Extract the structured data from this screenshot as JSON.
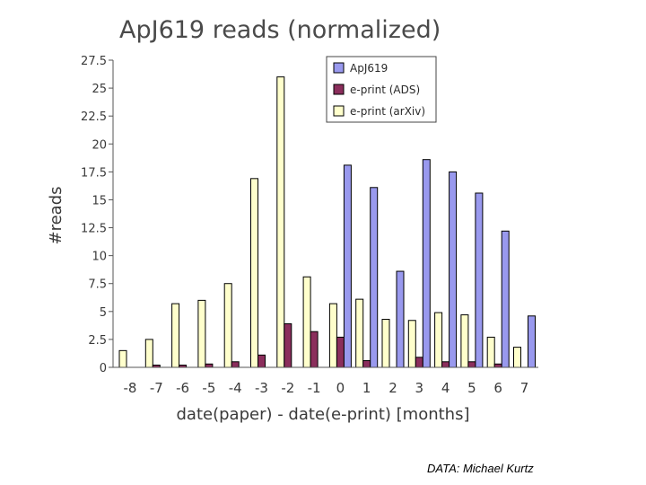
{
  "credit": "DATA: Michael Kurtz",
  "chart_data": {
    "type": "bar",
    "title": "ApJ619 reads (normalized)",
    "xlabel": "date(paper) - date(e-print) [months]",
    "ylabel": "#reads",
    "categories": [
      "-8",
      "-7",
      "-6",
      "-5",
      "-4",
      "-3",
      "-2",
      "-1",
      "0",
      "1",
      "2",
      "3",
      "4",
      "5",
      "6",
      "7"
    ],
    "ylim": [
      0,
      27.5
    ],
    "yticks": [
      "0",
      "2.5",
      "5",
      "7.5",
      "10",
      "12.5",
      "15",
      "17.5",
      "20",
      "22.5",
      "25",
      "27.5"
    ],
    "grid": false,
    "legend_position": "top-right",
    "series": [
      {
        "name": "ApJ619",
        "color": "#9999ee",
        "values": [
          0,
          0,
          0,
          0,
          0,
          0,
          0,
          0,
          18.1,
          16.1,
          8.6,
          18.6,
          17.5,
          15.6,
          12.2,
          4.6
        ]
      },
      {
        "name": "e-print (ADS)",
        "color": "#8b2e5c",
        "values": [
          0,
          0.2,
          0.2,
          0.3,
          0.5,
          1.1,
          3.9,
          3.2,
          2.7,
          0.6,
          0,
          0.9,
          0.5,
          0.5,
          0.3,
          0
        ]
      },
      {
        "name": "e-print (arXiv)",
        "color": "#ffffcc",
        "values": [
          1.5,
          2.5,
          5.7,
          6.0,
          7.5,
          16.9,
          26.0,
          8.1,
          5.7,
          6.1,
          4.3,
          4.2,
          4.9,
          4.7,
          2.7,
          1.8
        ]
      }
    ]
  }
}
